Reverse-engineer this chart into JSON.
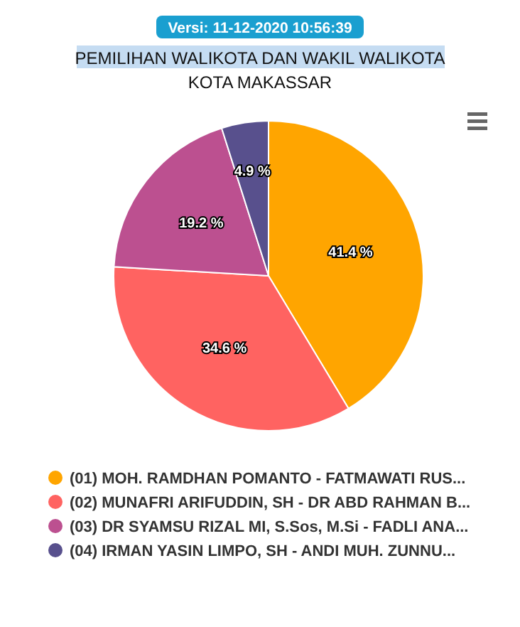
{
  "chart_data": {
    "type": "pie",
    "title": "PEMILIHAN WALIKOTA DAN WAKIL WALIKOTA",
    "subtitle": "KOTA MAKASSAR",
    "annotations": [
      "Versi: 11-12-2020 10:56:39"
    ],
    "categories": [
      "(01) MOH. RAMDHAN POMANTO - FATMAWATI RUS...",
      "(02) MUNAFRI ARIFUDDIN, SH - DR ABD RAHMAN B...",
      "(03) DR SYAMSU RIZAL MI, S.Sos, M.Si - FADLI ANA...",
      "(04) IRMAN YASIN LIMPO, SH - ANDI MUH. ZUNNU..."
    ],
    "values": [
      41.4,
      34.6,
      19.2,
      4.9
    ],
    "value_labels": [
      "41.4 %",
      "34.6 %",
      "19.2 %",
      "4.9 %"
    ],
    "colors": [
      "#ffa500",
      "#ff6361",
      "#bc5090",
      "#58508d"
    ],
    "legend": "bottom"
  }
}
